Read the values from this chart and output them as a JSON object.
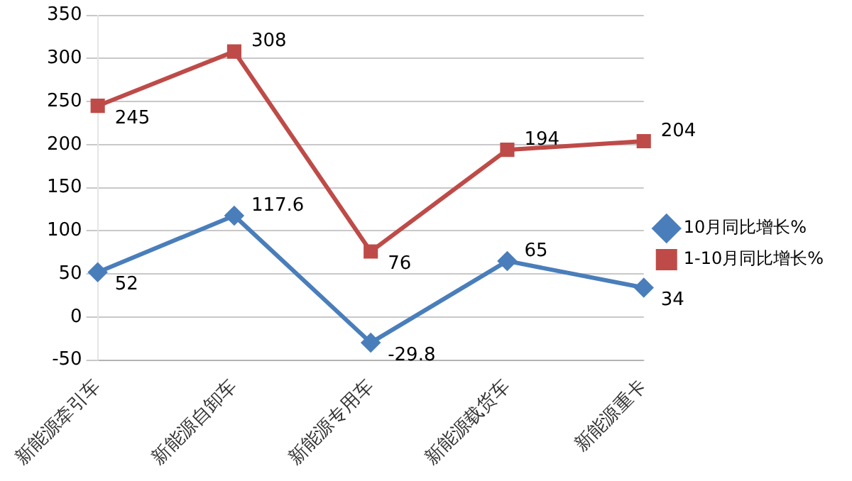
{
  "chart_data": {
    "type": "line",
    "categories": [
      "新能源牵引车",
      "新能源自卸车",
      "新能源专用车",
      "新能源载货车",
      "新能源重卡"
    ],
    "series": [
      {
        "name": "10月同比增长%",
        "color": "#4a7ebb",
        "marker": "diamond",
        "values": [
          52,
          117.6,
          -29.8,
          65,
          34
        ]
      },
      {
        "name": "1-10月同比增长%",
        "color": "#be4b48",
        "marker": "square",
        "values": [
          245,
          308,
          76,
          194,
          204
        ]
      }
    ],
    "ylim": [
      -50,
      350
    ],
    "yticks": [
      -50,
      0,
      50,
      100,
      150,
      200,
      250,
      300,
      350
    ],
    "grid": "y",
    "legend": "right",
    "data_labels": true,
    "line_style": "solid"
  }
}
